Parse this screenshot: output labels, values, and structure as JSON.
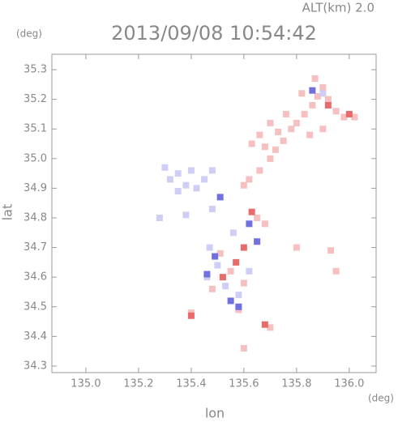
{
  "chart_data": {
    "type": "scatter",
    "title": "2013/09/08 10:54:42",
    "subtitle": "ALT(km)  2.0",
    "x_label": "lon",
    "y_label": "lat",
    "x_unit": "(deg)",
    "y_unit": "(deg)",
    "xlim": [
      134.871,
      136.102
    ],
    "ylim": [
      34.278,
      35.352
    ],
    "xticks": [
      {
        "value": 135.0,
        "label": "135.0"
      },
      135.2,
      135.4,
      135.6,
      135.8,
      {
        "value": 136.0,
        "label": "136.0"
      }
    ],
    "yticks": [
      34.3,
      34.4,
      34.5,
      34.6,
      34.7,
      34.8,
      34.9,
      {
        "value": 35.0,
        "label": "35.0"
      },
      35.1,
      35.2,
      35.3
    ],
    "series": [
      {
        "color": "#f6c0c0",
        "x": [
          135.62,
          135.6,
          135.66,
          135.7,
          135.72,
          135.75,
          135.78,
          135.8,
          135.83,
          135.86,
          135.88,
          135.9,
          135.87,
          135.92,
          135.95,
          135.98,
          136.02,
          135.7,
          135.73,
          135.66,
          135.63,
          135.68,
          135.85,
          135.9,
          135.82,
          135.76,
          135.93,
          135.8,
          135.51,
          135.55,
          135.6,
          135.48,
          135.58,
          135.7,
          135.6,
          135.4,
          135.95,
          135.65,
          135.68
        ],
        "y": [
          34.93,
          34.91,
          34.96,
          35.0,
          35.03,
          35.06,
          35.1,
          35.12,
          35.15,
          35.18,
          35.21,
          35.24,
          35.27,
          35.2,
          35.16,
          35.14,
          35.14,
          35.12,
          35.09,
          35.08,
          35.05,
          35.04,
          35.08,
          35.1,
          35.22,
          35.15,
          34.69,
          34.7,
          34.68,
          34.62,
          34.58,
          34.56,
          34.49,
          34.43,
          34.36,
          34.48,
          34.62,
          34.8,
          34.78
        ]
      },
      {
        "color": "#e86a6a",
        "x": [
          135.92,
          136.0,
          135.57,
          135.52,
          135.63,
          135.4,
          135.68,
          135.6
        ],
        "y": [
          35.18,
          35.15,
          34.65,
          34.6,
          34.82,
          34.47,
          34.44,
          34.7
        ]
      },
      {
        "color": "#cfcff5",
        "x": [
          135.32,
          135.35,
          135.38,
          135.42,
          135.45,
          135.4,
          135.3,
          135.35,
          135.48,
          135.28,
          135.48,
          135.47,
          135.5,
          135.53,
          135.58,
          135.46,
          135.62,
          135.38,
          135.9,
          135.56
        ],
        "y": [
          34.93,
          34.95,
          34.91,
          34.9,
          34.93,
          34.96,
          34.97,
          34.89,
          34.96,
          34.8,
          34.83,
          34.7,
          34.64,
          34.57,
          34.54,
          34.6,
          34.62,
          34.81,
          35.22,
          34.75
        ]
      },
      {
        "color": "#7070e0",
        "x": [
          135.49,
          135.55,
          135.58,
          135.62,
          135.51,
          135.65,
          135.46,
          135.86
        ],
        "y": [
          34.67,
          34.52,
          34.5,
          34.78,
          34.87,
          34.72,
          34.61,
          35.23
        ]
      }
    ]
  }
}
